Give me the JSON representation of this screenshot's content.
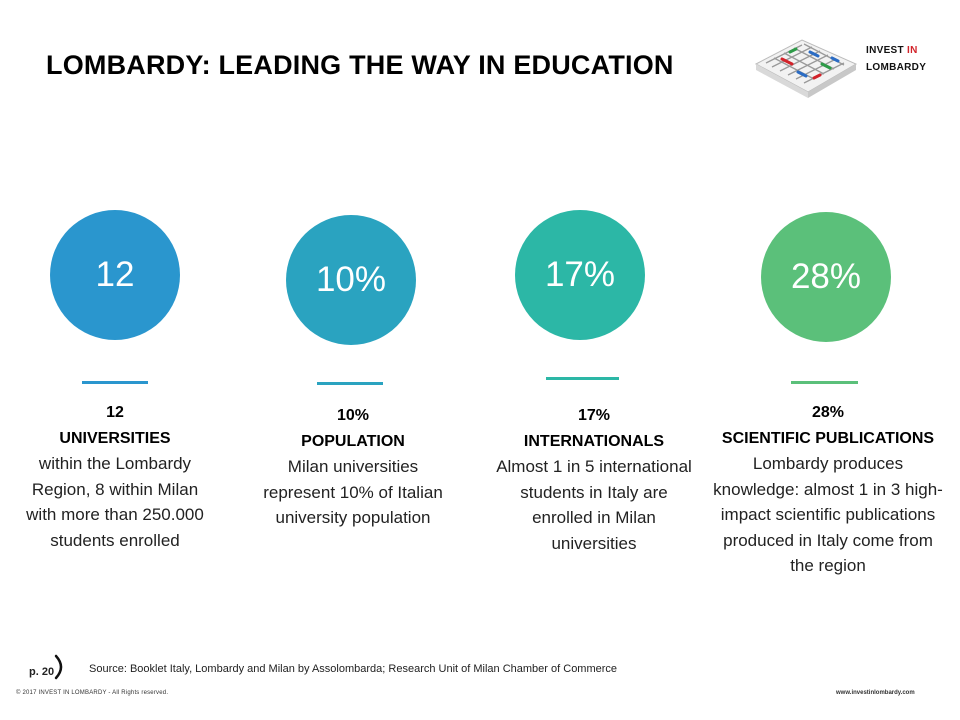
{
  "title": "LOMBARDY: LEADING THE WAY IN EDUCATION",
  "logo": {
    "line1_prefix": "INVEST ",
    "line1_accent": "IN",
    "line2": "LOMBARDY",
    "accent_color": "#d2232a"
  },
  "stats": [
    {
      "value": "12",
      "color": "#2a96ce",
      "stat": "12",
      "heading": "UNIVERSITIES",
      "body": "within the Lombardy Region, 8 within Milan with more than 250.000 students enrolled"
    },
    {
      "value": "10%",
      "color": "#2aa3c0",
      "stat": "10%",
      "heading": "POPULATION",
      "body": "Milan universities represent  10% of Italian university population"
    },
    {
      "value": "17%",
      "color": "#2cb7a6",
      "stat": "17%",
      "heading": "INTERNATIONALS",
      "body": "Almost 1 in 5 international students in Italy are enrolled in Milan universities"
    },
    {
      "value": "28%",
      "color": "#5bc07a",
      "stat": "28%",
      "heading": "SCIENTIFIC PUBLICATIONS",
      "body": "Lombardy produces knowledge: almost 1 in 3 high- impact scientific publications produced in Italy come from the region"
    }
  ],
  "footer": {
    "page": "p. 20",
    "source": "Source: Booklet Italy, Lombardy and Milan by Assolombarda; Research Unit of Milan Chamber of Commerce",
    "copyright": "© 2017 INVEST IN LOMBARDY -  All Rights reserved.",
    "website": "www.investinlombardy.com"
  }
}
